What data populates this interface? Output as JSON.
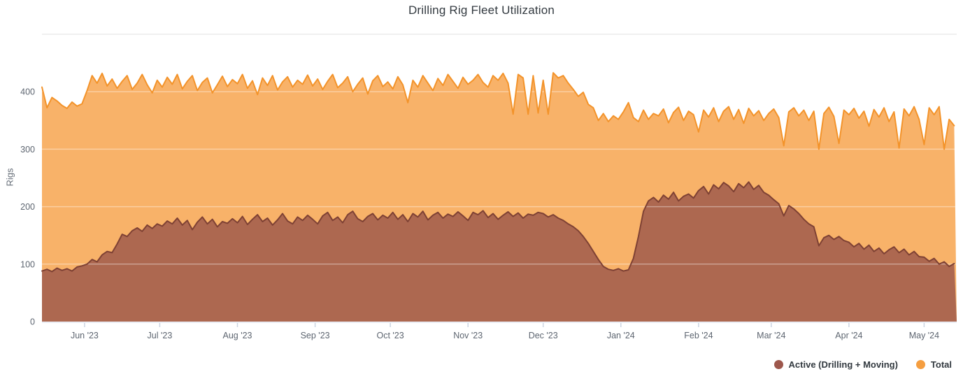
{
  "chart_data": {
    "type": "area",
    "title": "Drilling Rig Fleet Utilization",
    "ylabel": "Rigs",
    "x_unit": "day",
    "x_range": {
      "start": "2023-05-15",
      "end": "2024-05-14",
      "days": 365,
      "sample_step_days": 2
    },
    "ylim": [
      0,
      500
    ],
    "yticks": [
      0,
      100,
      200,
      300,
      400
    ],
    "xticks": [
      {
        "label": "Jun '23",
        "day": 17
      },
      {
        "label": "Jul '23",
        "day": 47
      },
      {
        "label": "Aug '23",
        "day": 78
      },
      {
        "label": "Sep '23",
        "day": 109
      },
      {
        "label": "Oct '23",
        "day": 139
      },
      {
        "label": "Nov '23",
        "day": 170
      },
      {
        "label": "Dec '23",
        "day": 200
      },
      {
        "label": "Jan '24",
        "day": 231
      },
      {
        "label": "Feb '24",
        "day": 262
      },
      {
        "label": "Mar '24",
        "day": 291
      },
      {
        "label": "Apr '24",
        "day": 322
      },
      {
        "label": "May '24",
        "day": 352
      }
    ],
    "grid": true,
    "legend_position": "bottom-right",
    "series": [
      {
        "id": "active",
        "name": "Active (Drilling + Moving)",
        "stroke": "#7e4134",
        "fill": "#ad6850",
        "legend_dot": "#9d574c",
        "values": [
          88,
          91,
          87,
          93,
          89,
          92,
          88,
          95,
          97,
          100,
          108,
          104,
          116,
          122,
          120,
          135,
          152,
          148,
          158,
          163,
          157,
          168,
          162,
          170,
          166,
          175,
          170,
          180,
          168,
          176,
          160,
          173,
          182,
          170,
          178,
          165,
          174,
          171,
          179,
          172,
          183,
          169,
          178,
          186,
          174,
          180,
          168,
          177,
          188,
          175,
          170,
          182,
          176,
          185,
          178,
          170,
          184,
          190,
          176,
          182,
          172,
          186,
          192,
          179,
          174,
          183,
          188,
          177,
          185,
          180,
          190,
          178,
          186,
          174,
          188,
          182,
          192,
          177,
          185,
          190,
          180,
          187,
          183,
          191,
          184,
          176,
          190,
          186,
          193,
          181,
          188,
          178,
          185,
          191,
          183,
          189,
          180,
          187,
          185,
          190,
          188,
          182,
          186,
          180,
          176,
          170,
          165,
          158,
          148,
          136,
          122,
          108,
          96,
          91,
          89,
          92,
          88,
          90,
          110,
          148,
          192,
          210,
          216,
          208,
          220,
          213,
          225,
          210,
          218,
          222,
          215,
          228,
          235,
          222,
          238,
          231,
          242,
          236,
          226,
          240,
          233,
          243,
          230,
          237,
          225,
          220,
          212,
          205,
          184,
          202,
          196,
          188,
          178,
          170,
          165,
          132,
          146,
          150,
          143,
          148,
          141,
          138,
          130,
          136,
          126,
          133,
          122,
          128,
          118,
          125,
          130,
          120,
          126,
          116,
          122,
          113,
          112,
          105,
          110,
          100,
          104,
          96,
          101
        ]
      },
      {
        "id": "total",
        "name": "Total",
        "stroke": "#f3932a",
        "fill": "#f8b269",
        "legend_dot": "#f59e40",
        "values": [
          408,
          372,
          390,
          384,
          376,
          371,
          382,
          375,
          379,
          402,
          428,
          415,
          432,
          410,
          422,
          406,
          418,
          428,
          404,
          415,
          430,
          412,
          398,
          420,
          408,
          425,
          413,
          430,
          405,
          418,
          428,
          402,
          416,
          424,
          398,
          412,
          427,
          409,
          421,
          414,
          430,
          406,
          419,
          395,
          424,
          411,
          428,
          403,
          417,
          426,
          408,
          420,
          413,
          429,
          410,
          422,
          404,
          418,
          430,
          407,
          415,
          426,
          400,
          413,
          424,
          396,
          419,
          428,
          409,
          417,
          405,
          426,
          412,
          381,
          420,
          408,
          428,
          415,
          402,
          423,
          411,
          430,
          418,
          406,
          425,
          413,
          420,
          430,
          416,
          408,
          428,
          420,
          432,
          415,
          361,
          430,
          424,
          361,
          428,
          363,
          420,
          361,
          433,
          424,
          428,
          415,
          404,
          392,
          399,
          378,
          372,
          350,
          362,
          348,
          358,
          352,
          365,
          381,
          355,
          348,
          368,
          352,
          362,
          358,
          370,
          346,
          364,
          373,
          350,
          366,
          360,
          330,
          368,
          356,
          372,
          348,
          366,
          374,
          352,
          369,
          345,
          371,
          358,
          367,
          350,
          362,
          370,
          355,
          306,
          365,
          372,
          358,
          368,
          350,
          366,
          300,
          362,
          373,
          357,
          310,
          368,
          360,
          371,
          354,
          366,
          340,
          369,
          356,
          372,
          348,
          365,
          302,
          370,
          358,
          374,
          352,
          308,
          372,
          360,
          374,
          300,
          352,
          341
        ]
      }
    ]
  },
  "colors": {
    "background": "#ffffff",
    "grid": "#ececec",
    "grid_over_fill": "rgba(255,255,255,0.38)",
    "axis_line": "#e2e6ef",
    "tick_mark": "#ccd4e2",
    "axis_text": "#5d6570",
    "title_text": "#333a40",
    "legend_text": "#333a40"
  }
}
